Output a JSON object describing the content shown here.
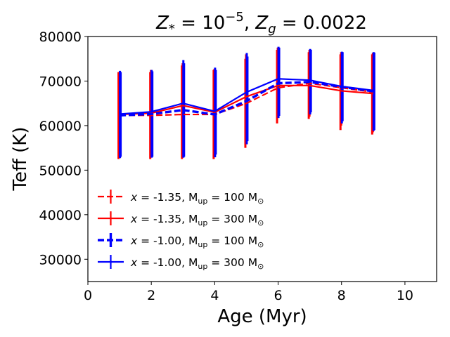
{
  "chart_data": {
    "type": "line",
    "title": {
      "zstar_sym": "Z",
      "zstar_sub": "*",
      "eq1": " = 10",
      "exp": "−5",
      "sep": ", ",
      "zg_sym": "Z",
      "zg_sub": "g",
      "eq2": " = 0.0022"
    },
    "xlabel": "Age (Myr)",
    "ylabel": "Teff (K)",
    "xlim": [
      0,
      11
    ],
    "ylim": [
      25000,
      80000
    ],
    "xticks": [
      0,
      2,
      4,
      6,
      8,
      10
    ],
    "xtick_labels": [
      "0",
      "2",
      "4",
      "6",
      "8",
      "10"
    ],
    "yticks": [
      30000,
      40000,
      50000,
      60000,
      70000,
      80000
    ],
    "ytick_labels": [
      "30000",
      "40000",
      "50000",
      "60000",
      "70000",
      "80000"
    ],
    "legend_position": "lower-left",
    "series": [
      {
        "id": "s1",
        "legend": {
          "pre": " = -1.35, M",
          "sub_up": "up",
          "mid": " = 100 M",
          "sun": "⊙"
        },
        "x_sym": "x",
        "color": "#ff0000",
        "dash": "dashed",
        "width": "normal",
        "x": [
          1,
          2,
          3,
          4,
          5,
          6,
          7,
          8,
          9
        ],
        "y": [
          62300,
          62300,
          62500,
          62500,
          65000,
          68500,
          69500,
          68500,
          67500
        ],
        "err_low": [
          52500,
          52500,
          52500,
          52500,
          55000,
          60500,
          61500,
          59000,
          58000
        ],
        "err_high": [
          72000,
          72000,
          73500,
          72500,
          75000,
          77000,
          76500,
          76000,
          76000
        ]
      },
      {
        "id": "s2",
        "legend": {
          "pre": " = -1.35, M",
          "sub_up": "up",
          "mid": " = 300 M",
          "sun": "⊙"
        },
        "x_sym": "x",
        "color": "#ff0000",
        "dash": "solid",
        "width": "normal",
        "x": [
          1,
          2,
          3,
          4,
          5,
          6,
          7,
          8,
          9
        ],
        "y": [
          62500,
          62800,
          64500,
          63000,
          66500,
          69000,
          69000,
          67800,
          67200
        ],
        "err_low": [
          53000,
          53000,
          53000,
          53000,
          56000,
          62000,
          62000,
          60000,
          58500
        ],
        "err_high": [
          72000,
          72500,
          74000,
          72700,
          76000,
          77500,
          77000,
          76500,
          76300
        ]
      },
      {
        "id": "s3",
        "legend": {
          "pre": " = -1.00, M",
          "sub_up": "up",
          "mid": " = 100 M",
          "sun": "⊙"
        },
        "x_sym": "x",
        "color": "#0000ff",
        "dash": "dashed",
        "width": "thick",
        "x": [
          1,
          2,
          3,
          4,
          5,
          6,
          7,
          8,
          9
        ],
        "y": [
          62300,
          62600,
          63500,
          62500,
          65500,
          69500,
          69800,
          68700,
          67700
        ],
        "err_low": [
          52700,
          52800,
          52800,
          52900,
          55800,
          61700,
          62500,
          60500,
          58800
        ],
        "err_high": [
          72300,
          72500,
          74700,
          73000,
          76300,
          77700,
          77200,
          76600,
          76500
        ]
      },
      {
        "id": "s4",
        "legend": {
          "pre": " = -1.00, M",
          "sub_up": "up",
          "mid": " = 300 M",
          "sun": "⊙"
        },
        "x_sym": "x",
        "color": "#0000ff",
        "dash": "solid",
        "width": "normal",
        "x": [
          1,
          2,
          3,
          4,
          5,
          6,
          7,
          8,
          9
        ],
        "y": [
          62600,
          63100,
          65000,
          63200,
          67500,
          70500,
          70200,
          68800,
          67900
        ],
        "err_low": [
          53000,
          53000,
          53000,
          53500,
          56500,
          62200,
          63000,
          61000,
          59000
        ],
        "err_high": [
          72000,
          72200,
          74000,
          72500,
          75500,
          77500,
          77000,
          76500,
          76400
        ]
      }
    ]
  }
}
